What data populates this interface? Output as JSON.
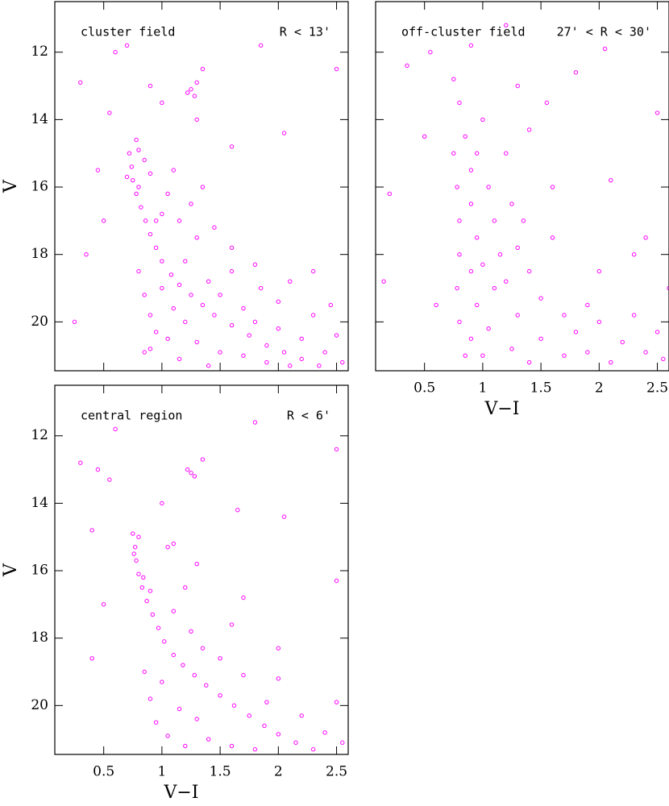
{
  "chart_data": [
    {
      "type": "scatter",
      "annotations": [
        "cluster field",
        "R < 13'"
      ],
      "ylabel": "V",
      "color": "#ff00ff",
      "xlim": [
        0.08,
        2.6
      ],
      "ylim": [
        10.5,
        21.45
      ],
      "y_inverted": true,
      "xticks": [
        0.5,
        1,
        1.5,
        2,
        2.5
      ],
      "yticks": [
        12,
        14,
        16,
        18,
        20
      ],
      "xticklabels": false,
      "yticklabels": true,
      "x": [
        0.72,
        0.74,
        0.75,
        0.78,
        0.82,
        0.86,
        0.9,
        0.95,
        1.0,
        1.08,
        1.15,
        1.25,
        1.35,
        1.45,
        1.6,
        1.75,
        1.9,
        2.05,
        2.2,
        2.35,
        0.78,
        0.8,
        0.85,
        0.9,
        0.7,
        0.8,
        0.8,
        0.85,
        0.9,
        0.95,
        0.9,
        1.0,
        1.1,
        1.05,
        1.2,
        1.2,
        1.3,
        1.4,
        1.3,
        1.5,
        1.5,
        1.6,
        1.7,
        1.7,
        1.8,
        1.85,
        1.9,
        2.0,
        2.0,
        2.1,
        2.2,
        2.3,
        2.4,
        2.5,
        2.55,
        1.15,
        1.25,
        1.0,
        1.35,
        1.1,
        1.45,
        1.6,
        1.8,
        2.1,
        2.3,
        2.45,
        0.85,
        1.15,
        1.4,
        0.95,
        1.05,
        1.25,
        1.28,
        1.3,
        1.22,
        1.35,
        1.3,
        1.0,
        0.6,
        0.55,
        0.3,
        0.45,
        0.5,
        0.35,
        0.25,
        1.85,
        2.05,
        2.5,
        1.6,
        0.9,
        0.7
      ],
      "y": [
        15.0,
        15.4,
        15.8,
        16.2,
        16.6,
        17.0,
        17.4,
        17.8,
        18.2,
        18.6,
        18.9,
        19.2,
        19.5,
        19.8,
        20.1,
        20.4,
        20.7,
        20.9,
        21.1,
        21.3,
        14.6,
        14.9,
        15.2,
        15.6,
        15.7,
        16.0,
        18.5,
        19.2,
        19.8,
        20.3,
        20.8,
        19.0,
        19.6,
        20.5,
        20.0,
        18.2,
        17.5,
        18.8,
        20.6,
        19.2,
        20.9,
        18.5,
        19.6,
        21.0,
        20.0,
        19.0,
        21.2,
        20.2,
        19.4,
        21.3,
        20.5,
        19.8,
        20.9,
        20.4,
        21.2,
        17.0,
        16.5,
        16.8,
        16.0,
        15.5,
        17.2,
        17.8,
        18.3,
        18.8,
        18.5,
        19.5,
        20.9,
        21.1,
        21.3,
        17.0,
        16.2,
        13.1,
        13.3,
        12.9,
        13.2,
        12.5,
        14.0,
        13.5,
        12.0,
        13.8,
        12.9,
        15.5,
        17.0,
        18.0,
        20.0,
        11.8,
        14.4,
        12.5,
        14.8,
        13.0,
        11.8
      ]
    },
    {
      "type": "scatter",
      "annotations": [
        "off-cluster field",
        "27' < R < 30'"
      ],
      "xlabel": "V−I",
      "color": "#ff00ff",
      "xlim": [
        0.08,
        2.6
      ],
      "ylim": [
        10.5,
        21.45
      ],
      "y_inverted": true,
      "xticks": [
        0.5,
        1,
        1.5,
        2,
        2.5
      ],
      "yticks": [
        12,
        14,
        16,
        18,
        20
      ],
      "xticklabels": true,
      "yticklabels": false,
      "x": [
        0.75,
        0.78,
        0.8,
        0.8,
        0.78,
        0.8,
        0.85,
        0.9,
        0.9,
        0.95,
        0.9,
        0.95,
        0.9,
        1.0,
        1.05,
        1.1,
        1.0,
        1.1,
        1.05,
        1.2,
        1.25,
        1.3,
        1.2,
        1.3,
        1.25,
        1.4,
        1.4,
        1.5,
        1.5,
        1.6,
        1.6,
        1.7,
        1.7,
        1.8,
        1.9,
        1.9,
        2.0,
        2.1,
        2.2,
        2.3,
        2.4,
        2.5,
        2.55,
        2.6,
        1.55,
        1.3,
        0.75,
        0.8,
        0.55,
        0.35,
        0.2,
        0.5,
        0.6,
        0.15,
        1.8,
        2.1,
        2.4,
        2.5,
        0.9,
        1.2,
        2.05,
        1.0,
        1.4,
        0.85,
        0.95,
        1.15,
        1.35,
        2.0,
        2.3
      ],
      "y": [
        15.0,
        16.0,
        17.0,
        18.0,
        19.0,
        20.0,
        14.5,
        15.5,
        16.5,
        17.5,
        18.5,
        19.5,
        20.5,
        14.0,
        16.0,
        17.0,
        18.3,
        19.0,
        20.2,
        15.0,
        16.5,
        17.8,
        18.8,
        19.8,
        20.8,
        14.3,
        18.5,
        19.3,
        20.5,
        16.0,
        17.5,
        19.8,
        21.0,
        20.3,
        19.5,
        20.9,
        20.0,
        21.2,
        20.6,
        19.8,
        20.9,
        20.3,
        21.1,
        19.0,
        13.5,
        13.0,
        12.8,
        13.5,
        12.0,
        12.4,
        16.2,
        14.5,
        19.5,
        18.8,
        12.6,
        15.8,
        17.5,
        13.8,
        11.8,
        11.2,
        11.9,
        21.0,
        21.2,
        21.0,
        15.0,
        18.0,
        17.0,
        18.5,
        18.0
      ]
    },
    {
      "type": "scatter",
      "annotations": [
        "central region",
        "R < 6'"
      ],
      "xlabel": "V−I",
      "ylabel": "V",
      "color": "#ff00ff",
      "xlim": [
        0.08,
        2.6
      ],
      "ylim": [
        10.5,
        21.45
      ],
      "y_inverted": true,
      "xticks": [
        0.5,
        1,
        1.5,
        2,
        2.5
      ],
      "yticks": [
        12,
        14,
        16,
        18,
        20
      ],
      "xticklabels": true,
      "yticklabels": true,
      "x": [
        0.75,
        0.77,
        0.78,
        0.8,
        0.83,
        0.87,
        0.92,
        0.97,
        1.02,
        1.1,
        1.18,
        1.28,
        1.38,
        1.5,
        1.62,
        1.75,
        1.88,
        2.0,
        2.15,
        2.3,
        0.76,
        0.8,
        0.84,
        0.9,
        0.85,
        0.9,
        0.95,
        1.0,
        1.05,
        1.1,
        1.15,
        1.2,
        1.25,
        1.3,
        1.35,
        1.4,
        1.5,
        1.6,
        1.7,
        1.8,
        1.9,
        2.0,
        2.2,
        2.4,
        2.5,
        2.55,
        1.05,
        1.2,
        1.3,
        1.6,
        1.7,
        2.0,
        1.25,
        1.28,
        1.22,
        1.35,
        0.6,
        0.55,
        0.45,
        0.3,
        0.4,
        0.5,
        0.4,
        1.8,
        2.05,
        2.5,
        1.65,
        2.5,
        1.0,
        1.1
      ],
      "y": [
        14.9,
        15.3,
        15.7,
        16.1,
        16.5,
        16.9,
        17.3,
        17.7,
        18.1,
        18.5,
        18.8,
        19.1,
        19.4,
        19.7,
        20.0,
        20.3,
        20.6,
        20.85,
        21.1,
        21.3,
        15.5,
        15.0,
        16.2,
        16.6,
        19.0,
        19.8,
        20.5,
        19.3,
        20.9,
        17.2,
        20.1,
        21.2,
        17.8,
        20.4,
        18.3,
        21.0,
        18.6,
        21.2,
        19.1,
        21.3,
        19.9,
        19.2,
        20.3,
        20.8,
        19.9,
        21.1,
        15.3,
        16.5,
        15.8,
        17.6,
        16.8,
        18.3,
        13.1,
        13.2,
        13.0,
        12.7,
        11.8,
        13.3,
        13.0,
        12.8,
        14.8,
        17.0,
        18.6,
        11.6,
        14.4,
        12.4,
        14.2,
        16.3,
        14.0,
        15.2
      ]
    }
  ]
}
